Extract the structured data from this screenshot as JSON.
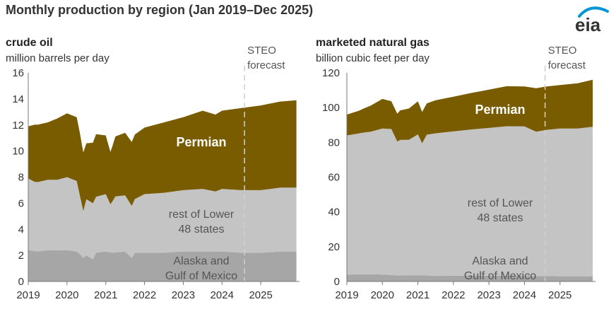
{
  "page": {
    "title": "Monthly production by region (Jan 2019–Dec 2025)",
    "logo_text": "eia"
  },
  "colors": {
    "permian": "#7a5c00",
    "lower48": "#c4c4c4",
    "alaska_gom": "#a6a6a6",
    "forecast_line": "#cfcfcf",
    "axis": "#777777",
    "logo_blue": "#0096d6"
  },
  "chart_data": [
    {
      "type": "area",
      "stacked": true,
      "title": "crude oil",
      "ylabel": "million barrels per day",
      "ylim": [
        0,
        16
      ],
      "yticks": [
        0,
        2,
        4,
        6,
        8,
        10,
        12,
        14,
        16
      ],
      "xlim": [
        2019.0,
        2026.0
      ],
      "xticks": [
        2019,
        2020,
        2021,
        2022,
        2023,
        2024,
        2025
      ],
      "forecast_start": 2024.58,
      "forecast_label": [
        "STEO",
        "forecast"
      ],
      "series": [
        {
          "name": "Alaska and Gulf of Mexico",
          "label_lines": [
            "Alaska and",
            "Gulf of Mexico"
          ],
          "x": [
            2019.0,
            2019.25,
            2019.5,
            2019.75,
            2020.0,
            2020.25,
            2020.33,
            2020.42,
            2020.5,
            2020.67,
            2020.75,
            2021.0,
            2021.17,
            2021.5,
            2021.67,
            2021.75,
            2022.0,
            2022.5,
            2023.0,
            2023.5,
            2024.0,
            2024.5,
            2025.0,
            2025.5,
            2025.92
          ],
          "values": [
            2.4,
            2.3,
            2.4,
            2.4,
            2.4,
            2.3,
            2.1,
            1.8,
            2.0,
            1.7,
            2.2,
            2.3,
            2.2,
            2.3,
            1.8,
            2.2,
            2.2,
            2.2,
            2.3,
            2.3,
            2.3,
            2.2,
            2.2,
            2.3,
            2.3
          ]
        },
        {
          "name": "rest of Lower 48 states",
          "label_lines": [
            "rest of Lower",
            "48 states"
          ],
          "x": [
            2019.0,
            2019.17,
            2019.5,
            2019.75,
            2020.0,
            2020.25,
            2020.33,
            2020.42,
            2020.5,
            2020.75,
            2021.0,
            2021.12,
            2021.25,
            2021.5,
            2021.67,
            2022.0,
            2022.5,
            2023.0,
            2023.5,
            2023.83,
            2024.0,
            2024.5,
            2025.0,
            2025.5,
            2025.92
          ],
          "values": [
            5.5,
            5.3,
            5.4,
            5.4,
            5.6,
            5.4,
            4.5,
            3.6,
            4.3,
            4.3,
            4.4,
            3.7,
            4.3,
            4.3,
            4.0,
            4.5,
            4.6,
            4.7,
            4.8,
            4.6,
            4.8,
            4.8,
            4.8,
            4.9,
            4.9
          ]
        },
        {
          "name": "Permian",
          "label_lines": [
            "Permian"
          ],
          "x": [
            2019.0,
            2019.17,
            2019.5,
            2019.75,
            2020.0,
            2020.25,
            2020.33,
            2020.42,
            2020.5,
            2020.75,
            2021.0,
            2021.12,
            2021.25,
            2021.5,
            2021.67,
            2022.0,
            2022.5,
            2023.0,
            2023.5,
            2023.83,
            2024.0,
            2024.5,
            2025.0,
            2025.5,
            2025.92
          ],
          "values": [
            4.0,
            4.4,
            4.4,
            4.7,
            4.9,
            4.9,
            4.8,
            4.5,
            4.3,
            4.8,
            4.5,
            4.0,
            4.6,
            4.8,
            4.9,
            5.1,
            5.4,
            5.6,
            6.0,
            5.9,
            6.0,
            6.3,
            6.5,
            6.6,
            6.7
          ]
        }
      ]
    },
    {
      "type": "area",
      "stacked": true,
      "title": "marketed natural gas",
      "ylabel": "billion cubic feet per day",
      "ylim": [
        0,
        120
      ],
      "yticks": [
        0,
        20,
        40,
        60,
        80,
        100,
        120
      ],
      "xlim": [
        2019.0,
        2026.0
      ],
      "xticks": [
        2019,
        2020,
        2021,
        2022,
        2023,
        2024,
        2025
      ],
      "forecast_start": 2024.58,
      "forecast_label": [
        "STEO",
        "forecast"
      ],
      "series": [
        {
          "name": "Alaska and Gulf of Mexico",
          "label_lines": [
            "Alaska and",
            "Gulf of Mexico"
          ],
          "x": [
            2019.0,
            2019.5,
            2020.0,
            2020.5,
            2021.0,
            2021.5,
            2022.0,
            2022.5,
            2023.0,
            2023.5,
            2024.0,
            2024.5,
            2025.0,
            2025.5,
            2025.92
          ],
          "values": [
            4.0,
            4.2,
            4.0,
            3.4,
            3.6,
            3.2,
            3.3,
            3.4,
            3.3,
            3.3,
            3.2,
            3.1,
            3.0,
            3.0,
            3.0
          ]
        },
        {
          "name": "rest of Lower 48 states",
          "label_lines": [
            "rest of Lower",
            "48 states"
          ],
          "x": [
            2019.0,
            2019.33,
            2019.67,
            2020.0,
            2020.25,
            2020.42,
            2020.5,
            2020.75,
            2021.0,
            2021.12,
            2021.25,
            2021.5,
            2022.0,
            2022.5,
            2023.0,
            2023.5,
            2023.83,
            2024.0,
            2024.33,
            2024.58,
            2025.0,
            2025.5,
            2025.92
          ],
          "values": [
            80.0,
            81.0,
            82.0,
            84.0,
            84.0,
            77.0,
            78.0,
            78.0,
            81.0,
            76.0,
            81.0,
            82.0,
            83.0,
            84.0,
            85.0,
            86.0,
            86.0,
            86.0,
            83.0,
            84.0,
            85.0,
            85.0,
            86.0
          ]
        },
        {
          "name": "Permian",
          "label_lines": [
            "Permian"
          ],
          "x": [
            2019.0,
            2019.33,
            2019.67,
            2020.0,
            2020.25,
            2020.42,
            2020.5,
            2020.75,
            2021.0,
            2021.12,
            2021.25,
            2021.5,
            2022.0,
            2022.5,
            2023.0,
            2023.5,
            2023.83,
            2024.0,
            2024.33,
            2024.58,
            2025.0,
            2025.5,
            2025.92
          ],
          "values": [
            12.0,
            13.0,
            15.0,
            17.0,
            16.0,
            16.0,
            17.0,
            18.0,
            19.0,
            18.0,
            18.0,
            19.0,
            20.0,
            21.0,
            22.0,
            23.0,
            23.0,
            23.0,
            25.0,
            25.0,
            25.0,
            26.0,
            27.0
          ]
        }
      ]
    }
  ]
}
